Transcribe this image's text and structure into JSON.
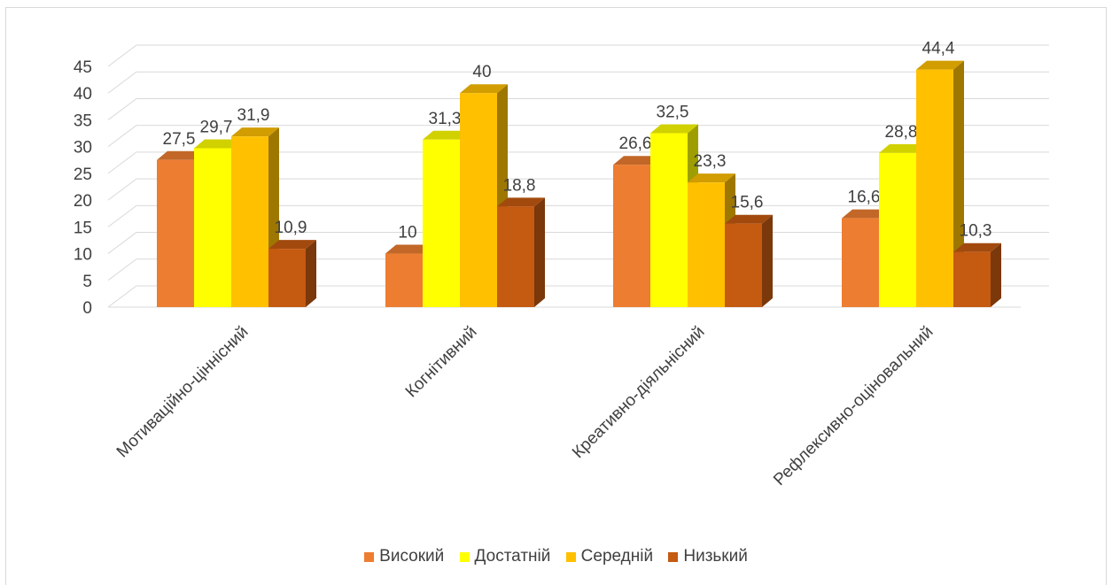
{
  "chart_data": {
    "type": "bar",
    "title": "",
    "xlabel": "",
    "ylabel": "",
    "ylim": [
      0,
      45
    ],
    "y_ticks": [
      "0",
      "5",
      "10",
      "15",
      "20",
      "25",
      "30",
      "35",
      "40",
      "45"
    ],
    "grid": true,
    "three_d": true,
    "legend_position": "bottom",
    "categories": [
      "Мотиваційно-ціннісний",
      "Когнітивний",
      "Креативно-діяльнісний",
      "Рефлексивно-оціновальний"
    ],
    "series": [
      {
        "name": "Високий",
        "color": "#ED7D31",
        "values": [
          27.5,
          10,
          26.6,
          16.6
        ],
        "labels": [
          "27,5",
          "10",
          "26,6",
          "16,6"
        ]
      },
      {
        "name": "Достатній",
        "color": "#FFFF00",
        "values": [
          29.7,
          31.3,
          32.5,
          28.8
        ],
        "labels": [
          "29,7",
          "31,3",
          "32,5",
          "28,8"
        ]
      },
      {
        "name": "Середній",
        "color": "#FFC000",
        "values": [
          31.9,
          40,
          23.3,
          44.4
        ],
        "labels": [
          "31,9",
          "40",
          "23,3",
          "44,4"
        ]
      },
      {
        "name": "Низький",
        "color": "#C55A11",
        "values": [
          10.9,
          18.8,
          15.6,
          10.3
        ],
        "labels": [
          "10,9",
          "18,8",
          "15,6",
          "10,3"
        ]
      }
    ]
  }
}
